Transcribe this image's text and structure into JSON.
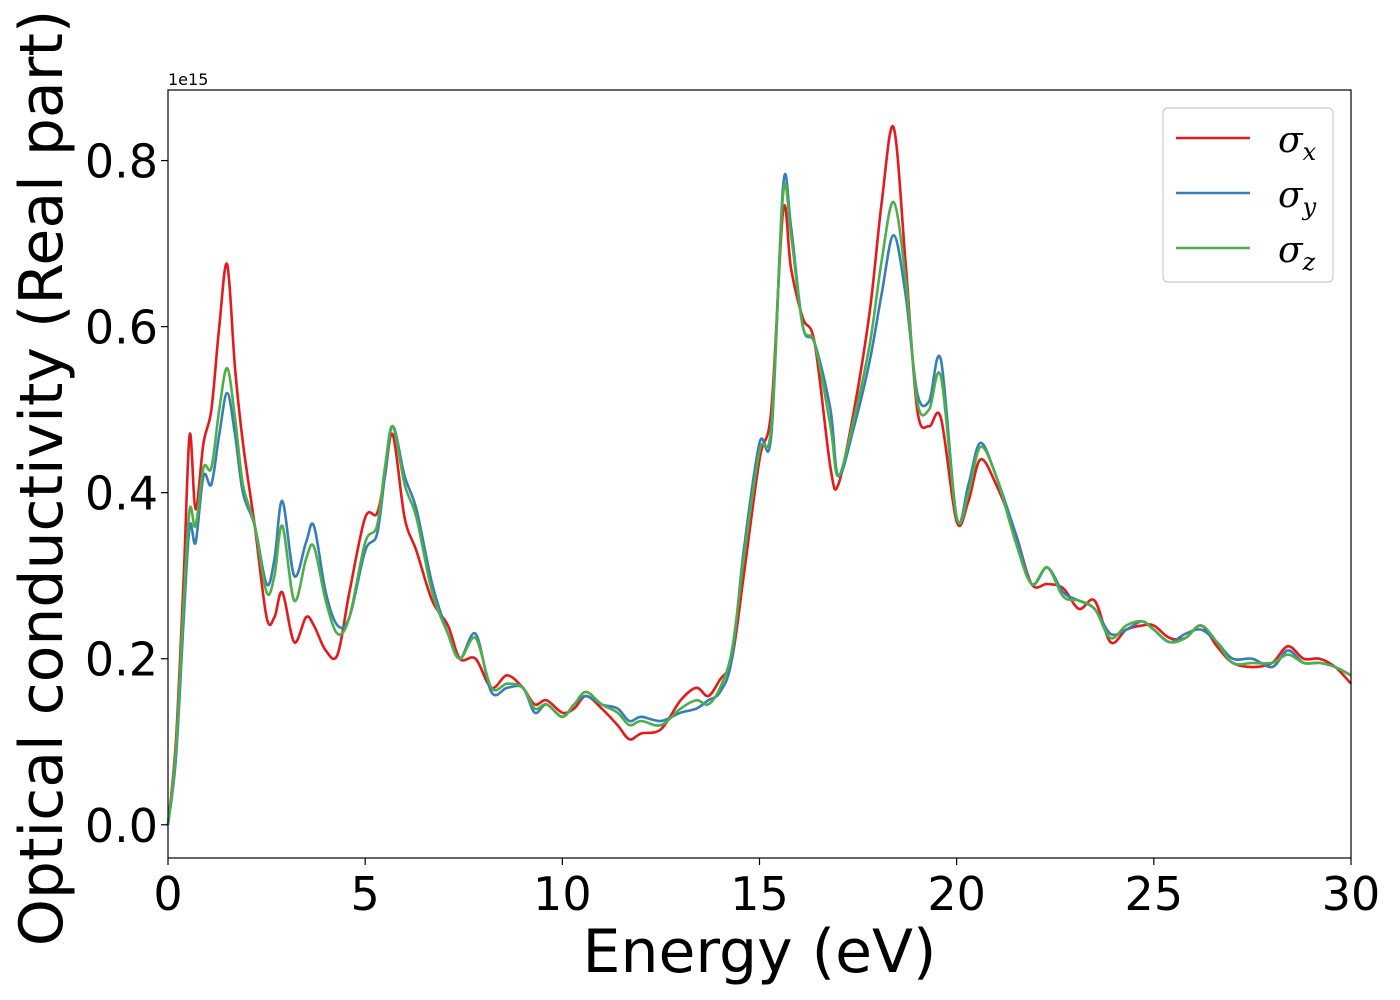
{
  "chart_data": {
    "type": "line",
    "xlabel": "Energy (eV)",
    "ylabel": "Optical conductivity (Real part)",
    "y_offset_text": "1e15",
    "xlim": [
      0,
      30
    ],
    "ylim": [
      -0.04,
      0.885
    ],
    "x_ticks": [
      0,
      5,
      10,
      15,
      20,
      25,
      30
    ],
    "y_ticks": [
      0.0,
      0.2,
      0.4,
      0.6,
      0.8
    ],
    "y_tick_labels": [
      "0.0",
      "0.2",
      "0.4",
      "0.6",
      "0.8"
    ],
    "grid": false,
    "legend_position": "top-right",
    "series": [
      {
        "name": "σx",
        "symbol": "σ",
        "subscript": "x",
        "color": "#e41a1c",
        "points": [
          [
            0,
            0.0
          ],
          [
            0.2,
            0.1
          ],
          [
            0.4,
            0.3
          ],
          [
            0.55,
            0.47
          ],
          [
            0.7,
            0.38
          ],
          [
            0.9,
            0.46
          ],
          [
            1.1,
            0.5
          ],
          [
            1.3,
            0.6
          ],
          [
            1.5,
            0.675
          ],
          [
            1.7,
            0.55
          ],
          [
            1.9,
            0.46
          ],
          [
            2.2,
            0.36
          ],
          [
            2.5,
            0.25
          ],
          [
            2.7,
            0.25
          ],
          [
            2.9,
            0.28
          ],
          [
            3.2,
            0.22
          ],
          [
            3.5,
            0.25
          ],
          [
            3.7,
            0.24
          ],
          [
            4.0,
            0.21
          ],
          [
            4.3,
            0.205
          ],
          [
            4.6,
            0.28
          ],
          [
            5.0,
            0.37
          ],
          [
            5.3,
            0.375
          ],
          [
            5.5,
            0.42
          ],
          [
            5.7,
            0.47
          ],
          [
            6.0,
            0.37
          ],
          [
            6.3,
            0.33
          ],
          [
            6.7,
            0.27
          ],
          [
            7.1,
            0.24
          ],
          [
            7.4,
            0.2
          ],
          [
            7.8,
            0.2
          ],
          [
            8.2,
            0.165
          ],
          [
            8.6,
            0.18
          ],
          [
            9.0,
            0.165
          ],
          [
            9.3,
            0.145
          ],
          [
            9.6,
            0.15
          ],
          [
            10.0,
            0.135
          ],
          [
            10.3,
            0.14
          ],
          [
            10.6,
            0.155
          ],
          [
            11.0,
            0.14
          ],
          [
            11.4,
            0.12
          ],
          [
            11.7,
            0.103
          ],
          [
            12.0,
            0.11
          ],
          [
            12.5,
            0.115
          ],
          [
            13.0,
            0.15
          ],
          [
            13.4,
            0.165
          ],
          [
            13.7,
            0.155
          ],
          [
            14.0,
            0.175
          ],
          [
            14.3,
            0.2
          ],
          [
            14.6,
            0.3
          ],
          [
            15.0,
            0.44
          ],
          [
            15.3,
            0.5
          ],
          [
            15.6,
            0.74
          ],
          [
            15.8,
            0.67
          ],
          [
            16.1,
            0.61
          ],
          [
            16.4,
            0.58
          ],
          [
            16.8,
            0.43
          ],
          [
            17.0,
            0.41
          ],
          [
            17.4,
            0.5
          ],
          [
            17.8,
            0.62
          ],
          [
            18.1,
            0.75
          ],
          [
            18.4,
            0.84
          ],
          [
            18.7,
            0.68
          ],
          [
            19.0,
            0.5
          ],
          [
            19.3,
            0.48
          ],
          [
            19.6,
            0.49
          ],
          [
            20.0,
            0.365
          ],
          [
            20.3,
            0.39
          ],
          [
            20.6,
            0.44
          ],
          [
            21.0,
            0.41
          ],
          [
            21.5,
            0.35
          ],
          [
            21.9,
            0.29
          ],
          [
            22.3,
            0.29
          ],
          [
            22.7,
            0.285
          ],
          [
            23.1,
            0.26
          ],
          [
            23.5,
            0.27
          ],
          [
            23.9,
            0.22
          ],
          [
            24.3,
            0.235
          ],
          [
            24.7,
            0.24
          ],
          [
            25.0,
            0.24
          ],
          [
            25.4,
            0.225
          ],
          [
            25.8,
            0.225
          ],
          [
            26.2,
            0.24
          ],
          [
            26.6,
            0.215
          ],
          [
            27.0,
            0.195
          ],
          [
            27.5,
            0.19
          ],
          [
            28.0,
            0.195
          ],
          [
            28.4,
            0.215
          ],
          [
            28.8,
            0.2
          ],
          [
            29.2,
            0.2
          ],
          [
            29.6,
            0.19
          ],
          [
            30.0,
            0.17
          ]
        ]
      },
      {
        "name": "σy",
        "symbol": "σ",
        "subscript": "y",
        "color": "#377eb8",
        "points": [
          [
            0,
            0.0
          ],
          [
            0.2,
            0.08
          ],
          [
            0.4,
            0.25
          ],
          [
            0.55,
            0.36
          ],
          [
            0.7,
            0.34
          ],
          [
            0.9,
            0.42
          ],
          [
            1.1,
            0.41
          ],
          [
            1.3,
            0.47
          ],
          [
            1.5,
            0.52
          ],
          [
            1.7,
            0.47
          ],
          [
            1.9,
            0.4
          ],
          [
            2.2,
            0.36
          ],
          [
            2.5,
            0.29
          ],
          [
            2.7,
            0.32
          ],
          [
            2.9,
            0.39
          ],
          [
            3.2,
            0.3
          ],
          [
            3.5,
            0.34
          ],
          [
            3.7,
            0.36
          ],
          [
            4.0,
            0.28
          ],
          [
            4.3,
            0.24
          ],
          [
            4.6,
            0.25
          ],
          [
            5.0,
            0.33
          ],
          [
            5.3,
            0.35
          ],
          [
            5.5,
            0.42
          ],
          [
            5.7,
            0.48
          ],
          [
            6.0,
            0.42
          ],
          [
            6.3,
            0.38
          ],
          [
            6.7,
            0.29
          ],
          [
            7.1,
            0.23
          ],
          [
            7.4,
            0.2
          ],
          [
            7.8,
            0.23
          ],
          [
            8.2,
            0.16
          ],
          [
            8.6,
            0.165
          ],
          [
            9.0,
            0.165
          ],
          [
            9.3,
            0.135
          ],
          [
            9.6,
            0.145
          ],
          [
            10.0,
            0.13
          ],
          [
            10.3,
            0.145
          ],
          [
            10.6,
            0.155
          ],
          [
            11.0,
            0.145
          ],
          [
            11.4,
            0.14
          ],
          [
            11.7,
            0.125
          ],
          [
            12.0,
            0.13
          ],
          [
            12.5,
            0.125
          ],
          [
            13.0,
            0.135
          ],
          [
            13.4,
            0.14
          ],
          [
            13.7,
            0.15
          ],
          [
            14.0,
            0.16
          ],
          [
            14.3,
            0.2
          ],
          [
            14.6,
            0.33
          ],
          [
            15.0,
            0.46
          ],
          [
            15.3,
            0.47
          ],
          [
            15.6,
            0.77
          ],
          [
            15.8,
            0.72
          ],
          [
            16.1,
            0.6
          ],
          [
            16.4,
            0.58
          ],
          [
            16.8,
            0.5
          ],
          [
            17.0,
            0.42
          ],
          [
            17.4,
            0.48
          ],
          [
            17.8,
            0.56
          ],
          [
            18.1,
            0.64
          ],
          [
            18.4,
            0.71
          ],
          [
            18.7,
            0.64
          ],
          [
            19.0,
            0.52
          ],
          [
            19.3,
            0.51
          ],
          [
            19.6,
            0.56
          ],
          [
            20.0,
            0.37
          ],
          [
            20.3,
            0.41
          ],
          [
            20.6,
            0.46
          ],
          [
            21.0,
            0.42
          ],
          [
            21.5,
            0.35
          ],
          [
            21.9,
            0.29
          ],
          [
            22.3,
            0.31
          ],
          [
            22.7,
            0.28
          ],
          [
            23.1,
            0.27
          ],
          [
            23.5,
            0.26
          ],
          [
            23.9,
            0.23
          ],
          [
            24.3,
            0.235
          ],
          [
            24.7,
            0.245
          ],
          [
            25.0,
            0.235
          ],
          [
            25.4,
            0.22
          ],
          [
            25.8,
            0.23
          ],
          [
            26.2,
            0.235
          ],
          [
            26.6,
            0.22
          ],
          [
            27.0,
            0.2
          ],
          [
            27.5,
            0.2
          ],
          [
            28.0,
            0.19
          ],
          [
            28.4,
            0.21
          ],
          [
            28.8,
            0.195
          ],
          [
            29.2,
            0.195
          ],
          [
            29.6,
            0.19
          ],
          [
            30.0,
            0.18
          ]
        ]
      },
      {
        "name": "σz",
        "symbol": "σ",
        "subscript": "z",
        "color": "#4daf4a",
        "points": [
          [
            0,
            0.0
          ],
          [
            0.2,
            0.09
          ],
          [
            0.4,
            0.27
          ],
          [
            0.55,
            0.38
          ],
          [
            0.7,
            0.36
          ],
          [
            0.9,
            0.43
          ],
          [
            1.1,
            0.43
          ],
          [
            1.3,
            0.5
          ],
          [
            1.5,
            0.55
          ],
          [
            1.7,
            0.49
          ],
          [
            1.9,
            0.41
          ],
          [
            2.2,
            0.36
          ],
          [
            2.5,
            0.28
          ],
          [
            2.7,
            0.3
          ],
          [
            2.9,
            0.36
          ],
          [
            3.2,
            0.27
          ],
          [
            3.5,
            0.32
          ],
          [
            3.7,
            0.335
          ],
          [
            4.0,
            0.27
          ],
          [
            4.3,
            0.23
          ],
          [
            4.6,
            0.25
          ],
          [
            5.0,
            0.34
          ],
          [
            5.3,
            0.36
          ],
          [
            5.5,
            0.43
          ],
          [
            5.7,
            0.48
          ],
          [
            6.0,
            0.41
          ],
          [
            6.3,
            0.37
          ],
          [
            6.7,
            0.28
          ],
          [
            7.1,
            0.23
          ],
          [
            7.4,
            0.2
          ],
          [
            7.8,
            0.225
          ],
          [
            8.2,
            0.165
          ],
          [
            8.6,
            0.17
          ],
          [
            9.0,
            0.165
          ],
          [
            9.3,
            0.14
          ],
          [
            9.6,
            0.145
          ],
          [
            10.0,
            0.13
          ],
          [
            10.3,
            0.145
          ],
          [
            10.6,
            0.16
          ],
          [
            11.0,
            0.145
          ],
          [
            11.4,
            0.135
          ],
          [
            11.7,
            0.12
          ],
          [
            12.0,
            0.125
          ],
          [
            12.5,
            0.12
          ],
          [
            13.0,
            0.14
          ],
          [
            13.4,
            0.15
          ],
          [
            13.7,
            0.145
          ],
          [
            14.0,
            0.165
          ],
          [
            14.3,
            0.21
          ],
          [
            14.6,
            0.32
          ],
          [
            15.0,
            0.45
          ],
          [
            15.3,
            0.48
          ],
          [
            15.6,
            0.76
          ],
          [
            15.8,
            0.71
          ],
          [
            16.1,
            0.6
          ],
          [
            16.4,
            0.58
          ],
          [
            16.8,
            0.48
          ],
          [
            17.0,
            0.42
          ],
          [
            17.4,
            0.49
          ],
          [
            17.8,
            0.58
          ],
          [
            18.1,
            0.68
          ],
          [
            18.4,
            0.75
          ],
          [
            18.7,
            0.66
          ],
          [
            19.0,
            0.51
          ],
          [
            19.3,
            0.5
          ],
          [
            19.6,
            0.54
          ],
          [
            20.0,
            0.37
          ],
          [
            20.3,
            0.4
          ],
          [
            20.6,
            0.455
          ],
          [
            21.0,
            0.42
          ],
          [
            21.5,
            0.34
          ],
          [
            21.9,
            0.29
          ],
          [
            22.3,
            0.31
          ],
          [
            22.7,
            0.275
          ],
          [
            23.1,
            0.27
          ],
          [
            23.5,
            0.26
          ],
          [
            23.9,
            0.225
          ],
          [
            24.3,
            0.24
          ],
          [
            24.7,
            0.245
          ],
          [
            25.0,
            0.235
          ],
          [
            25.4,
            0.22
          ],
          [
            25.8,
            0.225
          ],
          [
            26.2,
            0.24
          ],
          [
            26.6,
            0.22
          ],
          [
            27.0,
            0.195
          ],
          [
            27.5,
            0.195
          ],
          [
            28.0,
            0.195
          ],
          [
            28.4,
            0.205
          ],
          [
            28.8,
            0.195
          ],
          [
            29.2,
            0.195
          ],
          [
            29.6,
            0.19
          ],
          [
            30.0,
            0.18
          ]
        ]
      }
    ]
  }
}
